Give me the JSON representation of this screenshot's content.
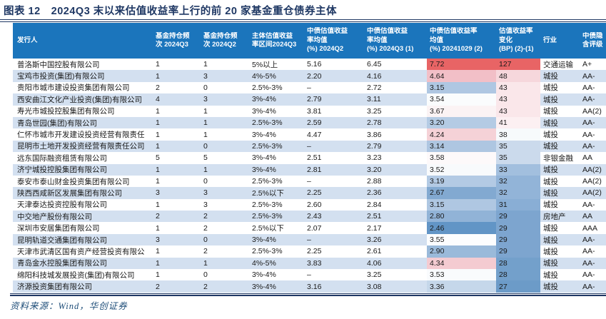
{
  "header": {
    "title": "图表 12　2024Q3 末以来估值收益率上行的前 20 家基金重仓债券主体"
  },
  "footer": {
    "source": "资料来源：Wind，华创证券"
  },
  "colors": {
    "header_bg": "#1B75BC",
    "stripe": "#D3E0F0",
    "title_navy": "#1F3864",
    "heat_max_red": "#E86465",
    "heat_min_blue": "#6295C6"
  },
  "table": {
    "columns": [
      {
        "key": "issuer",
        "label": "发行人"
      },
      {
        "key": "freq_q3",
        "label": "基金持仓频\n次 2024Q3"
      },
      {
        "key": "freq_q2",
        "label": "基金持仓频\n次 2024Q2"
      },
      {
        "key": "range_q3",
        "label": "主体估值收益\n率区间2024Q3"
      },
      {
        "key": "yield_q2",
        "label": "中债估值收益\n率均值\n(%) 2024Q2"
      },
      {
        "key": "yield_q3",
        "label": "中债估值收益\n率均值\n(%) 2024Q3 (1)"
      },
      {
        "key": "yield_1029",
        "label": "中债估值收益率\n均值\n(%) 20241029 (2)"
      },
      {
        "key": "chg_bp",
        "label": "估值收益率\n变化\n(BP) (2)-(1)"
      },
      {
        "key": "industry",
        "label": "行业"
      },
      {
        "key": "rating",
        "label": "中债隐\n含评级"
      }
    ],
    "rows": [
      {
        "issuer": "普洛斯中国控股有限公司",
        "freq_q3": "1",
        "freq_q2": "1",
        "range_q3": "5%以上",
        "yield_q2": "5.16",
        "yield_q3": "6.45",
        "yield_1029": "7.72",
        "chg_bp": "127",
        "industry": "交通运输",
        "rating": "A+",
        "bg_1029": "#E86465",
        "bg_bp": "#E86465"
      },
      {
        "issuer": "宝鸡市投资(集团)有限公司",
        "freq_q3": "1",
        "freq_q2": "3",
        "range_q3": "4%-5%",
        "yield_q2": "2.20",
        "yield_q3": "4.16",
        "yield_1029": "4.64",
        "chg_bp": "48",
        "industry": "城投",
        "rating": "AA-",
        "bg_1029": "#F2BFC7",
        "bg_bp": "#F6D7DC"
      },
      {
        "issuer": "贵阳市城市建设投资集团有限公司",
        "freq_q3": "2",
        "freq_q2": "0",
        "range_q3": "2.5%-3%",
        "yield_q2": "–",
        "yield_q3": "2.72",
        "yield_1029": "3.15",
        "chg_bp": "43",
        "industry": "城投",
        "rating": "AA-",
        "bg_1029": "#AFC7E2",
        "bg_bp": "#FAE7EA"
      },
      {
        "issuer": "西安曲江文化产业投资(集团)有限公司",
        "freq_q3": "4",
        "freq_q2": "3",
        "range_q3": "3%-4%",
        "yield_q2": "2.79",
        "yield_q3": "3.11",
        "yield_1029": "3.54",
        "chg_bp": "43",
        "industry": "城投",
        "rating": "AA-",
        "bg_1029": "#FAFCFD",
        "bg_bp": "#FAE7EA"
      },
      {
        "issuer": "寿光市城投控股集团有限公司",
        "freq_q3": "1",
        "freq_q2": "1",
        "range_q3": "3%-4%",
        "yield_q2": "3.81",
        "yield_q3": "3.25",
        "yield_1029": "3.67",
        "chg_bp": "43",
        "industry": "城投",
        "rating": "AA(2)",
        "bg_1029": "#FBF3F4",
        "bg_bp": "#FAE7EA"
      },
      {
        "issuer": "青岛世园(集团)有限公司",
        "freq_q3": "1",
        "freq_q2": "1",
        "range_q3": "2.5%-3%",
        "yield_q2": "2.59",
        "yield_q3": "2.78",
        "yield_1029": "3.20",
        "chg_bp": "41",
        "industry": "城投",
        "rating": "AA-",
        "bg_1029": "#B4CBE4",
        "bg_bp": "#FCF0F2"
      },
      {
        "issuer": "仁怀市城市开发建设投资经营有限责任",
        "freq_q3": "1",
        "freq_q2": "1",
        "range_q3": "3%-4%",
        "yield_q2": "4.47",
        "yield_q3": "3.86",
        "yield_1029": "4.24",
        "chg_bp": "38",
        "industry": "城投",
        "rating": "AA-",
        "bg_1029": "#F5D2D7",
        "bg_bp": "#F7FAFC"
      },
      {
        "issuer": "昆明市土地开发投资经营有限责任公司",
        "freq_q3": "1",
        "freq_q2": "0",
        "range_q3": "2.5%-3%",
        "yield_q2": "–",
        "yield_q3": "2.79",
        "yield_1029": "3.14",
        "chg_bp": "35",
        "industry": "城投",
        "rating": "AA-",
        "bg_1029": "#AEC6E1",
        "bg_bp": "#CBDAEC"
      },
      {
        "issuer": "远东国际融资租赁有限公司",
        "freq_q3": "5",
        "freq_q2": "5",
        "range_q3": "3%-4%",
        "yield_q2": "2.51",
        "yield_q3": "3.23",
        "yield_1029": "3.58",
        "chg_bp": "35",
        "industry": "非银金融",
        "rating": "AA",
        "bg_1029": "#FDF9FA",
        "bg_bp": "#CBDAEC"
      },
      {
        "issuer": "济宁城投控股集团有限公司",
        "freq_q3": "1",
        "freq_q2": "1",
        "range_q3": "3%-4%",
        "yield_q2": "2.81",
        "yield_q3": "3.20",
        "yield_1029": "3.52",
        "chg_bp": "33",
        "industry": "城投",
        "rating": "AA(2)",
        "bg_1029": "#F8FAFC",
        "bg_bp": "#A2BFDE"
      },
      {
        "issuer": "泰安市泰山财金投资集团有限公司",
        "freq_q3": "1",
        "freq_q2": "0",
        "range_q3": "2.5%-3%",
        "yield_q2": "–",
        "yield_q3": "2.88",
        "yield_1029": "3.19",
        "chg_bp": "32",
        "industry": "城投",
        "rating": "AA(2)",
        "bg_1029": "#B3CAE4",
        "bg_bp": "#92B4D8"
      },
      {
        "issuer": "陕西西咸新区发展集团有限公司",
        "freq_q3": "3",
        "freq_q2": "3",
        "range_q3": "2.5%以下",
        "yield_q2": "2.25",
        "yield_q3": "2.36",
        "yield_1029": "2.67",
        "chg_bp": "32",
        "industry": "城投",
        "rating": "AA(2)",
        "bg_1029": "#82A9D1",
        "bg_bp": "#92B4D8"
      },
      {
        "issuer": "天津泰达投资控股有限公司",
        "freq_q3": "1",
        "freq_q2": "3",
        "range_q3": "2.5%-3%",
        "yield_q2": "2.60",
        "yield_q3": "2.84",
        "yield_1029": "3.15",
        "chg_bp": "31",
        "industry": "城投",
        "rating": "AA-",
        "bg_1029": "#AFC7E2",
        "bg_bp": "#89AED5"
      },
      {
        "issuer": "中交地产股份有限公司",
        "freq_q3": "2",
        "freq_q2": "2",
        "range_q3": "2.5%-3%",
        "yield_q2": "2.43",
        "yield_q3": "2.51",
        "yield_1029": "2.80",
        "chg_bp": "29",
        "industry": "房地产",
        "rating": "AA",
        "bg_1029": "#91B3D7",
        "bg_bp": "#7DA5CF"
      },
      {
        "issuer": "深圳市安居集团有限公司",
        "freq_q3": "1",
        "freq_q2": "2",
        "range_q3": "2.5%以下",
        "yield_q2": "2.07",
        "yield_q3": "2.17",
        "yield_1029": "2.46",
        "chg_bp": "29",
        "industry": "城投",
        "rating": "AAA",
        "bg_1029": "#6295C6",
        "bg_bp": "#7DA5CF"
      },
      {
        "issuer": "昆明轨道交通集团有限公司",
        "freq_q3": "3",
        "freq_q2": "0",
        "range_q3": "3%-4%",
        "yield_q2": "–",
        "yield_q3": "3.26",
        "yield_1029": "3.55",
        "chg_bp": "29",
        "industry": "城投",
        "rating": "AA-",
        "bg_1029": "#FCFDFE",
        "bg_bp": "#7DA5CF"
      },
      {
        "issuer": "天津市武清区国有资产经营投资有限公",
        "freq_q3": "1",
        "freq_q2": "2",
        "range_q3": "2.5%-3%",
        "yield_q2": "2.25",
        "yield_q3": "2.61",
        "yield_1029": "2.90",
        "chg_bp": "29",
        "industry": "城投",
        "rating": "AA-",
        "bg_1029": "#9ABADA",
        "bg_bp": "#7DA5CF"
      },
      {
        "issuer": "青岛金水控股集团有限公司",
        "freq_q3": "1",
        "freq_q2": "1",
        "range_q3": "4%-5%",
        "yield_q2": "3.83",
        "yield_q3": "4.06",
        "yield_1029": "4.34",
        "chg_bp": "28",
        "industry": "城投",
        "rating": "AA-",
        "bg_1029": "#F4CBD1",
        "bg_bp": "#73A0CB"
      },
      {
        "issuer": "绵阳科技城发展投资(集团)有限公司",
        "freq_q3": "1",
        "freq_q2": "0",
        "range_q3": "3%-4%",
        "yield_q2": "–",
        "yield_q3": "3.25",
        "yield_1029": "3.53",
        "chg_bp": "28",
        "industry": "城投",
        "rating": "AA-",
        "bg_1029": "#F9FBFD",
        "bg_bp": "#73A0CB"
      },
      {
        "issuer": "济源投资集团有限公司",
        "freq_q3": "2",
        "freq_q2": "2",
        "range_q3": "3%-4%",
        "yield_q2": "3.16",
        "yield_q3": "3.08",
        "yield_1029": "3.36",
        "chg_bp": "27",
        "industry": "城投",
        "rating": "AA-",
        "bg_1029": "#C5D7EA",
        "bg_bp": "#6C9BC8"
      }
    ]
  }
}
